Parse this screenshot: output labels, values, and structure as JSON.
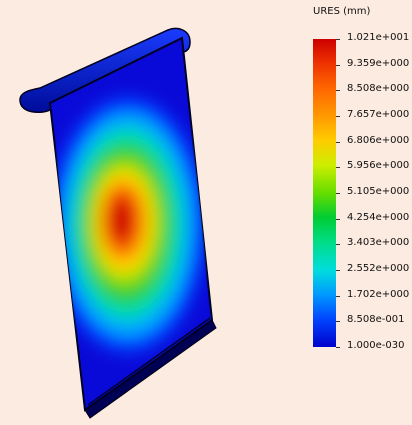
{
  "legend": {
    "title": "URES (mm)",
    "ticks": [
      "1.021e+001",
      "9.359e+000",
      "8.508e+000",
      "7.657e+000",
      "6.806e+000",
      "5.956e+000",
      "5.105e+000",
      "4.254e+000",
      "3.403e+000",
      "2.552e+000",
      "1.702e+000",
      "8.508e-001",
      "1.000e-030"
    ]
  },
  "colors": {
    "background": "#fcebe0",
    "min": "#0000cc",
    "max": "#cc0000"
  }
}
